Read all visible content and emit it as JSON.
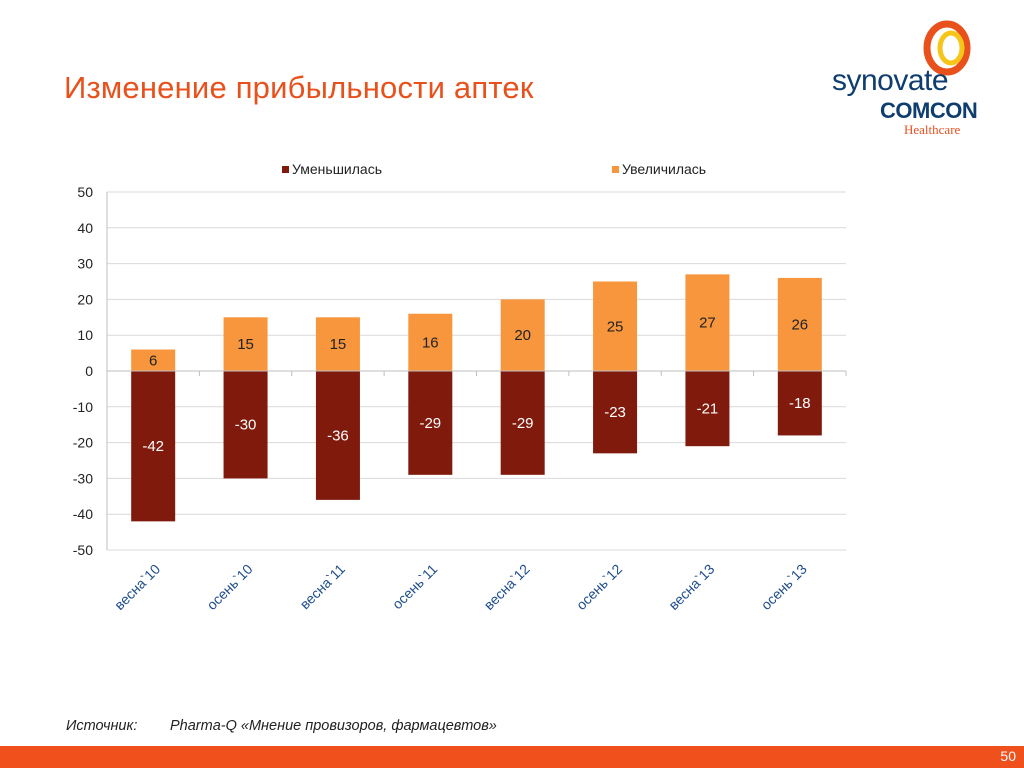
{
  "slide": {
    "title": "Изменение прибыльности аптек",
    "source_label": "Источник:",
    "source_text": "Pharma-Q «Мнение провизоров, фармацевтов»",
    "page_number": "50"
  },
  "logo": {
    "line1": "synovate",
    "line2": "COMCON",
    "line3": "Healthcare",
    "colors": {
      "navy": "#0e3d6e",
      "orange": "#e8501c",
      "yellow": "#f5a623"
    }
  },
  "colors": {
    "title": "#e8501c",
    "decreased": "#7f1a0c",
    "increased": "#f7963c",
    "footer": "#f0501c"
  },
  "chart_data": {
    "type": "bar",
    "stacked": true,
    "categories": [
      "весна`10",
      "осень`10",
      "весна`11",
      "осень`11",
      "весна`12",
      "осень`12",
      "весна`13",
      "осень`13"
    ],
    "series": [
      {
        "name": "Уменьшилась",
        "values": [
          -42,
          -30,
          -36,
          -29,
          -29,
          -23,
          -21,
          -18
        ],
        "color": "#7f1a0c"
      },
      {
        "name": "Увеличилась",
        "values": [
          6,
          15,
          15,
          16,
          20,
          25,
          27,
          26
        ],
        "color": "#f7963c"
      }
    ],
    "ylim": [
      -50,
      50
    ],
    "yticks": [
      50,
      40,
      30,
      20,
      10,
      0,
      -10,
      -20,
      -30,
      -40,
      -50
    ],
    "grid": true,
    "legend_position": "top"
  }
}
